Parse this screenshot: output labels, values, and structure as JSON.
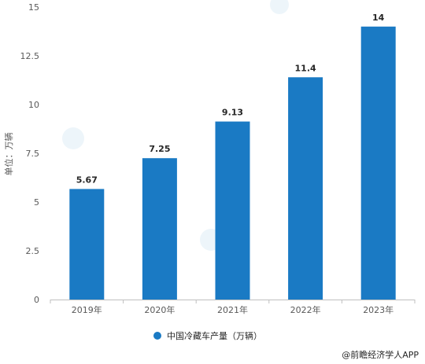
{
  "chart_data": {
    "type": "bar",
    "categories": [
      "2019年",
      "2020年",
      "2021年",
      "2022年",
      "2023年"
    ],
    "series": [
      {
        "name": "中国冷藏车产量（万辆）",
        "values": [
          5.67,
          7.25,
          9.13,
          11.4,
          14
        ]
      }
    ],
    "data_labels": [
      "5.67",
      "7.25",
      "9.13",
      "11.4",
      "14"
    ],
    "ylabel": "单位：万辆",
    "ylim": [
      0,
      15
    ],
    "yticks": [
      0,
      2.5,
      5,
      7.5,
      10,
      12.5,
      15
    ],
    "ytick_labels": [
      "0",
      "2.5",
      "5",
      "7.5",
      "10",
      "12.5",
      "15"
    ],
    "grid": false,
    "legend_position": "bottom",
    "bar_color": "#1a7ac4"
  },
  "footer": {
    "credit": "@前瞻经济学人APP"
  }
}
